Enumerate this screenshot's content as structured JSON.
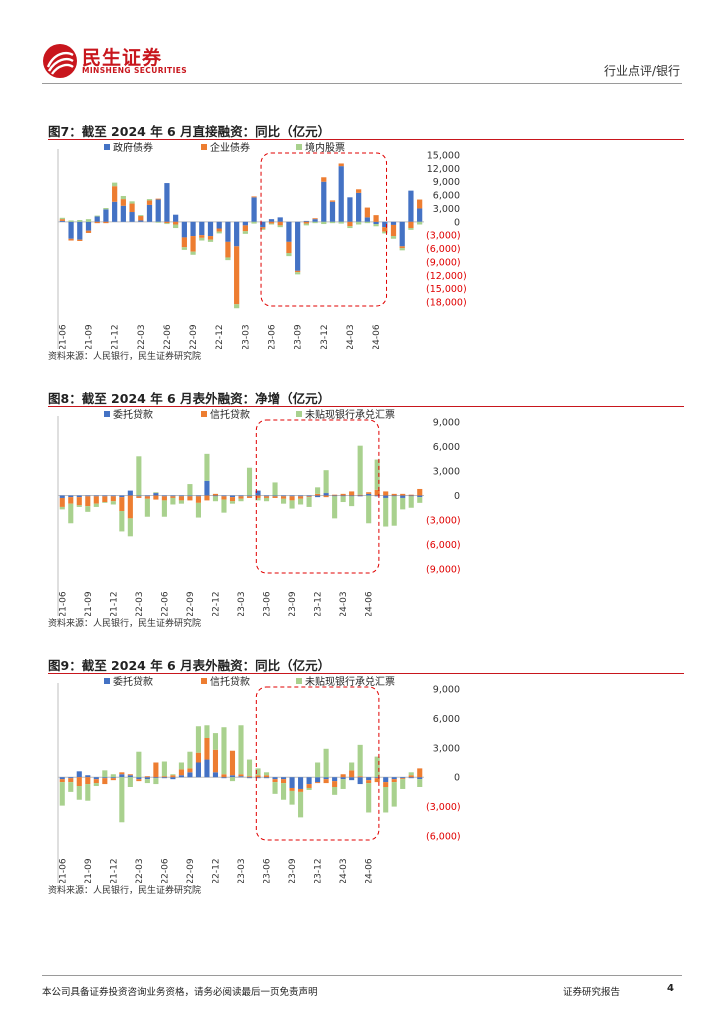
{
  "header": {
    "brand_name": "民生证券",
    "brand_en": "MINSHENG SECURITIES",
    "section": "行业点评/银行"
  },
  "colors": {
    "government_bonds": "#4472c4",
    "corporate_bonds": "#ed7d31",
    "domestic_equity": "#a9d18e",
    "entrusted_loans": "#4472c4",
    "trust_loans": "#ed7d31",
    "undiscounted_bills": "#a9d18e",
    "highlight": "#e00000",
    "brand_red": "#c8161d"
  },
  "footer": {
    "disclaimer": "本公司具备证券投资咨询业务资格，请务必阅读最后一页免责声明",
    "report_type": "证券研究报告",
    "page": "4"
  },
  "chart_data": [
    {
      "type": "bar",
      "stacked": true,
      "title": "图7：截至 2024 年 6 月直接融资：同比（亿元）",
      "source": "资料来源：人民银行，民生证券研究院",
      "x_tick_labels": [
        "2021-06",
        "2021-09",
        "2021-12",
        "2022-03",
        "2022-06",
        "2022-09",
        "2022-12",
        "2023-03",
        "2023-06",
        "2023-09",
        "2023-12",
        "2024-03",
        "2024-06"
      ],
      "y_tick_labels": [
        "15,000",
        "12,000",
        "9,000",
        "6,000",
        "3,000",
        "0",
        "(3,000)",
        "(6,000)",
        "(9,000)",
        "(12,000)",
        "(15,000)",
        "(18,000)"
      ],
      "y_ticks": [
        15000,
        12000,
        9000,
        6000,
        3000,
        0,
        -3000,
        -6000,
        -9000,
        -12000,
        -15000,
        -18000
      ],
      "ylim": [
        -18000,
        15000
      ],
      "y_axis_position": "right",
      "legend_position": "top",
      "highlight_range": [
        "2023-06",
        "2024-06"
      ],
      "series": [
        {
          "name": "政府债券",
          "color_key": "government_bonds",
          "values": [
            200,
            -3800,
            -4000,
            -2000,
            1200,
            2800,
            4500,
            3600,
            2200,
            300,
            3800,
            5000,
            8700,
            1600,
            -3500,
            -3200,
            -3000,
            -3200,
            -1500,
            -4500,
            -5500,
            -800,
            5500,
            -1200,
            600,
            1000,
            -4500,
            -11000,
            200,
            600,
            9000,
            4500,
            12500,
            5500,
            6500,
            1000,
            -500,
            -1200,
            -700,
            -5500,
            7000,
            3000
          ]
        },
        {
          "name": "企业债券",
          "color_key": "corporate_bonds",
          "values": [
            400,
            -400,
            -300,
            -500,
            -300,
            -300,
            3500,
            1500,
            1900,
            1000,
            1000,
            200,
            -300,
            -600,
            -2200,
            -3500,
            -600,
            -800,
            -700,
            -3500,
            -13000,
            -1300,
            200,
            -300,
            -400,
            -800,
            -2500,
            -300,
            -400,
            200,
            1000,
            300,
            600,
            -1000,
            800,
            2200,
            1500,
            -1000,
            -2500,
            -400,
            -1400,
            2000,
            300
          ]
        },
        {
          "name": "境内股票",
          "color_key": "domestic_equity",
          "values": [
            300,
            300,
            400,
            600,
            200,
            300,
            800,
            700,
            500,
            200,
            300,
            -200,
            -200,
            -800,
            -600,
            -700,
            -600,
            -500,
            -400,
            -600,
            -900,
            -600,
            -400,
            -300,
            -200,
            -400,
            -700,
            -500,
            -400,
            -300,
            -500,
            -300,
            -400,
            -400,
            -600,
            -300,
            -500,
            -400,
            -600,
            -500,
            -400,
            -600,
            -500
          ]
        }
      ]
    },
    {
      "type": "bar",
      "stacked": true,
      "title": "图8：截至 2024 年 6 月表外融资：净增（亿元）",
      "source": "资料来源：人民银行，民生证券研究院",
      "x_tick_labels": [
        "2021-06",
        "2021-09",
        "2021-12",
        "2022-03",
        "2022-06",
        "2022-09",
        "2022-12",
        "2023-03",
        "2023-06",
        "2023-09",
        "2023-12",
        "2024-03",
        "2024-06"
      ],
      "y_tick_labels": [
        "9,000",
        "6,000",
        "3,000",
        "0",
        "(3,000)",
        "(6,000)",
        "(9,000)"
      ],
      "y_ticks": [
        9000,
        6000,
        3000,
        0,
        -3000,
        -6000,
        -9000
      ],
      "ylim": [
        -9000,
        9000
      ],
      "y_axis_position": "right",
      "legend_position": "top",
      "highlight_range": [
        "2023-06",
        "2024-06"
      ],
      "series": [
        {
          "name": "委托贷款",
          "color_key": "entrusted_loans",
          "values": [
            -300,
            -200,
            -200,
            -100,
            -100,
            -100,
            -100,
            -200,
            600,
            -100,
            -100,
            300,
            -100,
            -100,
            -100,
            -100,
            -100,
            1800,
            -100,
            -100,
            -200,
            -100,
            -100,
            600,
            -100,
            -100,
            -100,
            -100,
            -100,
            -100,
            -200,
            300,
            -100,
            -100,
            -100,
            -100,
            200,
            -100,
            -300,
            -100,
            -300,
            -100,
            -200
          ]
        },
        {
          "name": "信托贷款",
          "color_key": "trust_loans",
          "values": [
            -1100,
            -800,
            -1000,
            -1200,
            -900,
            -700,
            -600,
            -1700,
            -2800,
            -200,
            -300,
            -500,
            -500,
            -200,
            -500,
            -500,
            -800,
            -600,
            200,
            -400,
            -500,
            -300,
            -200,
            -300,
            -200,
            -200,
            -300,
            -500,
            -300,
            -100,
            200,
            -200,
            100,
            200,
            500,
            100,
            200,
            700,
            500,
            200,
            200,
            100,
            800
          ]
        },
        {
          "name": "未贴现银行承兑汇票",
          "color_key": "undiscounted_bills",
          "values": [
            -300,
            -2400,
            -200,
            -700,
            -400,
            -100,
            -400,
            -2500,
            -2200,
            4800,
            -2200,
            100,
            -2000,
            -800,
            -400,
            1400,
            -1800,
            3300,
            -600,
            -1600,
            -300,
            -300,
            3400,
            -300,
            -400,
            1600,
            -600,
            -1000,
            -700,
            -1200,
            800,
            2800,
            -2700,
            -700,
            -1200,
            6000,
            -3400,
            3700,
            -3500,
            -3600,
            -1400,
            -1400,
            -700
          ]
        }
      ]
    },
    {
      "type": "bar",
      "stacked": true,
      "title": "图9：截至 2024 年 6 月表外融资：同比（亿元）",
      "source": "资料来源：人民银行，民生证券研究院",
      "x_tick_labels": [
        "2021-06",
        "2021-09",
        "2021-12",
        "2022-03",
        "2022-06",
        "2022-09",
        "2022-12",
        "2023-03",
        "2023-06",
        "2023-09",
        "2023-12",
        "2024-03",
        "2024-06"
      ],
      "y_tick_labels": [
        "9,000",
        "6,000",
        "3,000",
        "0",
        "(3,000)",
        "(6,000)"
      ],
      "y_ticks": [
        9000,
        6000,
        3000,
        0,
        -3000,
        -6000
      ],
      "ylim": [
        -6000,
        9000
      ],
      "y_axis_position": "right",
      "legend_position": "top",
      "highlight_range": [
        "2023-06",
        "2024-06"
      ],
      "series": [
        {
          "name": "委托贷款",
          "color_key": "entrusted_loans",
          "values": [
            -200,
            -100,
            600,
            200,
            -200,
            -100,
            -100,
            300,
            200,
            -200,
            -200,
            -100,
            -100,
            -200,
            200,
            500,
            1500,
            1800,
            500,
            -100,
            200,
            100,
            -100,
            -100,
            -100,
            -200,
            -200,
            -1100,
            -1200,
            -700,
            -500,
            -200,
            -400,
            -200,
            -300,
            -700,
            -300,
            -100,
            -500,
            -200,
            -100,
            -100,
            -200
          ]
        },
        {
          "name": "信托贷款",
          "color_key": "trust_loans",
          "values": [
            -300,
            -400,
            -900,
            -700,
            -400,
            -600,
            -200,
            200,
            100,
            -200,
            100,
            1500,
            100,
            200,
            600,
            400,
            1000,
            2200,
            2300,
            300,
            2500,
            200,
            100,
            200,
            200,
            -300,
            -400,
            -300,
            -300,
            -400,
            -100,
            -400,
            -600,
            300,
            700,
            100,
            -300,
            -400,
            -500,
            -300,
            -100,
            200,
            900
          ]
        },
        {
          "name": "未贴现银行承兑汇票",
          "color_key": "undiscounted_bills",
          "values": [
            -2400,
            -1000,
            -1400,
            -1700,
            -300,
            700,
            300,
            -4600,
            -1000,
            2600,
            -400,
            -600,
            1500,
            100,
            700,
            1700,
            2700,
            1300,
            1700,
            4800,
            -400,
            5000,
            1700,
            700,
            300,
            -1200,
            -1700,
            -1400,
            -2600,
            -200,
            1500,
            2900,
            -800,
            -1000,
            800,
            3200,
            -3000,
            2100,
            -2600,
            -2500,
            -1000,
            300,
            -800
          ]
        }
      ]
    }
  ]
}
